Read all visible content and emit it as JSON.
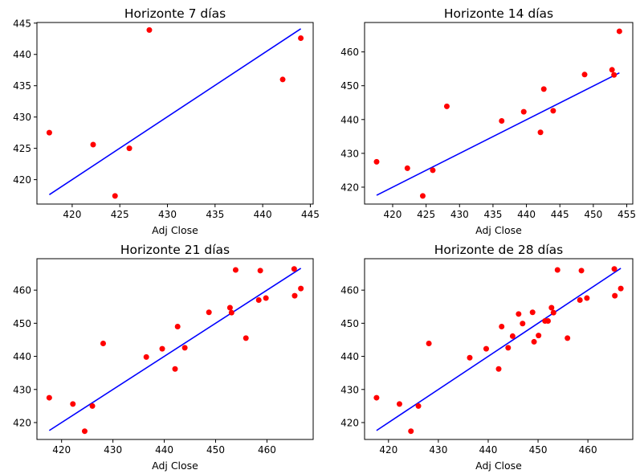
{
  "chart_data": [
    {
      "type": "scatter",
      "title": "Horizonte 7 días",
      "xlabel": "Adj Close",
      "ylabel": "",
      "xlim": [
        416.3,
        445.3
      ],
      "ylim": [
        416.1,
        445.1
      ],
      "xticks": [
        420,
        425,
        430,
        435,
        440,
        445
      ],
      "yticks": [
        420,
        425,
        430,
        435,
        440,
        445
      ],
      "grid": false,
      "series": [
        {
          "kind": "points",
          "color": "#ff0000",
          "points": [
            [
              417.6,
              427.5
            ],
            [
              422.2,
              425.6
            ],
            [
              424.5,
              417.4
            ],
            [
              426.0,
              425.0
            ],
            [
              428.1,
              443.9
            ],
            [
              442.1,
              436.0
            ],
            [
              444.0,
              442.6
            ]
          ]
        },
        {
          "kind": "fit-line",
          "color": "#0000ff",
          "line": [
            [
              417.6,
              417.6
            ],
            [
              444.0,
              444.1
            ]
          ]
        }
      ]
    },
    {
      "type": "scatter",
      "title": "Horizonte 14 días",
      "xlabel": "Adj Close",
      "ylabel": "",
      "xlim": [
        415.8,
        455.9
      ],
      "ylim": [
        415.0,
        468.7
      ],
      "xticks": [
        420,
        425,
        430,
        435,
        440,
        445,
        450,
        455
      ],
      "yticks": [
        420,
        430,
        440,
        450,
        460
      ],
      "grid": false,
      "series": [
        {
          "kind": "points",
          "color": "#ff0000",
          "points": [
            [
              417.6,
              427.5
            ],
            [
              422.2,
              425.6
            ],
            [
              424.5,
              417.4
            ],
            [
              426.0,
              425.0
            ],
            [
              428.1,
              443.9
            ],
            [
              436.3,
              439.6
            ],
            [
              439.6,
              442.3
            ],
            [
              442.1,
              436.2
            ],
            [
              442.6,
              449.0
            ],
            [
              444.0,
              442.6
            ],
            [
              448.7,
              453.3
            ],
            [
              452.8,
              454.7
            ],
            [
              453.1,
              453.2
            ],
            [
              453.9,
              466.1
            ]
          ]
        },
        {
          "kind": "fit-line",
          "color": "#0000ff",
          "line": [
            [
              417.6,
              417.6
            ],
            [
              453.9,
              453.8
            ]
          ]
        }
      ]
    },
    {
      "type": "scatter",
      "title": "Horizonte 21 días",
      "xlabel": "Adj Close",
      "ylabel": "",
      "xlim": [
        415.2,
        469.0
      ],
      "ylim": [
        414.9,
        469.5
      ],
      "xticks": [
        420,
        430,
        440,
        450,
        460
      ],
      "yticks": [
        420,
        430,
        440,
        450,
        460
      ],
      "grid": false,
      "series": [
        {
          "kind": "points",
          "color": "#ff0000",
          "points": [
            [
              417.6,
              427.5
            ],
            [
              422.2,
              425.6
            ],
            [
              424.5,
              417.4
            ],
            [
              426.0,
              425.0
            ],
            [
              428.1,
              443.9
            ],
            [
              436.5,
              439.8
            ],
            [
              439.6,
              442.3
            ],
            [
              442.1,
              436.2
            ],
            [
              442.6,
              449.0
            ],
            [
              444.0,
              442.6
            ],
            [
              448.7,
              453.3
            ],
            [
              452.8,
              454.7
            ],
            [
              453.1,
              453.2
            ],
            [
              453.9,
              466.1
            ],
            [
              455.9,
              445.5
            ],
            [
              458.4,
              457.0
            ],
            [
              458.7,
              465.9
            ],
            [
              459.8,
              457.6
            ],
            [
              465.3,
              466.4
            ],
            [
              465.4,
              458.3
            ],
            [
              466.6,
              460.5
            ]
          ]
        },
        {
          "kind": "fit-line",
          "color": "#0000ff",
          "line": [
            [
              417.6,
              417.6
            ],
            [
              466.6,
              466.6
            ]
          ]
        }
      ]
    },
    {
      "type": "scatter",
      "title": "Horizonte de 28 días",
      "xlabel": "Adj Close",
      "ylabel": "",
      "xlim": [
        415.2,
        469.0
      ],
      "ylim": [
        414.9,
        469.5
      ],
      "xticks": [
        420,
        430,
        440,
        450,
        460
      ],
      "yticks": [
        420,
        430,
        440,
        450,
        460
      ],
      "grid": false,
      "series": [
        {
          "kind": "points",
          "color": "#ff0000",
          "points": [
            [
              417.6,
              427.5
            ],
            [
              422.2,
              425.6
            ],
            [
              424.5,
              417.4
            ],
            [
              426.0,
              425.0
            ],
            [
              428.1,
              443.9
            ],
            [
              436.3,
              439.6
            ],
            [
              439.6,
              442.3
            ],
            [
              442.1,
              436.2
            ],
            [
              442.7,
              449.0
            ],
            [
              444.0,
              442.6
            ],
            [
              444.9,
              446.1
            ],
            [
              446.1,
              452.8
            ],
            [
              446.9,
              449.9
            ],
            [
              448.9,
              453.3
            ],
            [
              449.2,
              444.4
            ],
            [
              450.1,
              446.3
            ],
            [
              451.4,
              450.7
            ],
            [
              452.0,
              450.7
            ],
            [
              452.7,
              454.7
            ],
            [
              453.1,
              453.2
            ],
            [
              453.9,
              466.1
            ],
            [
              455.9,
              445.5
            ],
            [
              458.4,
              457.0
            ],
            [
              458.7,
              465.9
            ],
            [
              459.8,
              457.6
            ],
            [
              465.3,
              466.4
            ],
            [
              465.4,
              458.3
            ],
            [
              466.6,
              460.5
            ]
          ]
        },
        {
          "kind": "fit-line",
          "color": "#0000ff",
          "line": [
            [
              417.6,
              417.6
            ],
            [
              466.6,
              466.6
            ]
          ]
        }
      ]
    }
  ]
}
